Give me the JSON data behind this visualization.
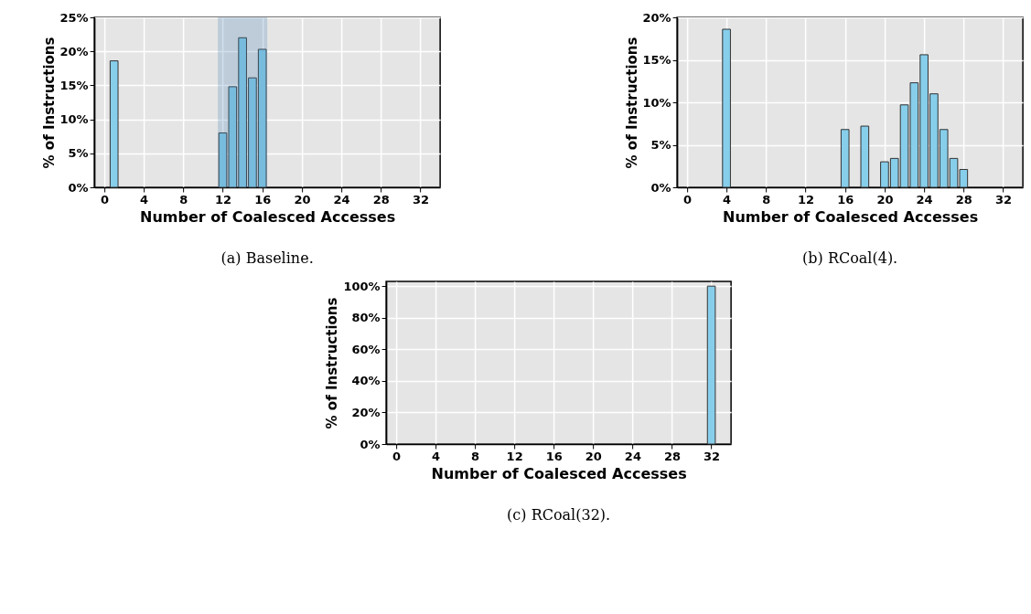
{
  "chart_data": [
    {
      "type": "bar",
      "title": "(a) Baseline.",
      "xlabel": "Number of Coalesced Accesses",
      "ylabel": "% of Instructions",
      "x": [
        1,
        12,
        13,
        14,
        15,
        16
      ],
      "series": [
        {
          "color": "#87ceeb",
          "values": [
            18.6,
            8.0,
            14.8,
            22.0,
            16.1,
            20.3
          ]
        }
      ],
      "xlim": [
        -1,
        34
      ],
      "xticks": [
        0,
        4,
        8,
        12,
        16,
        20,
        24,
        28,
        32
      ],
      "ylim": [
        0,
        25
      ],
      "yticks": [
        {
          "value": 0,
          "label": "0%"
        },
        {
          "value": 5,
          "label": "5%"
        },
        {
          "value": 10,
          "label": "10%"
        },
        {
          "value": 15,
          "label": "15%"
        },
        {
          "value": 20,
          "label": "20%"
        },
        {
          "value": 25,
          "label": "25%"
        }
      ],
      "bands": [
        {
          "axis": "x",
          "from": 11.5,
          "to": 16.5,
          "color": "#4682b4"
        }
      ],
      "grid": true
    },
    {
      "type": "bar",
      "title": "(b) RCoal(4).",
      "xlabel": "Number of Coalesced Accesses",
      "ylabel": "% of Instructions",
      "x": [
        4,
        16,
        18,
        20,
        21,
        22,
        23,
        24,
        25,
        26,
        27,
        28
      ],
      "series": [
        {
          "color": "#87ceeb",
          "values": [
            18.6,
            6.8,
            7.2,
            3.0,
            3.4,
            9.7,
            12.3,
            15.6,
            11.0,
            6.8,
            3.4,
            2.1
          ]
        }
      ],
      "xlim": [
        -1,
        34
      ],
      "xticks": [
        0,
        4,
        8,
        12,
        16,
        20,
        24,
        28,
        32
      ],
      "ylim": [
        0,
        20
      ],
      "yticks": [
        {
          "value": 0,
          "label": "0%"
        },
        {
          "value": 5,
          "label": "5%"
        },
        {
          "value": 10,
          "label": "10%"
        },
        {
          "value": 15,
          "label": "15%"
        },
        {
          "value": 20,
          "label": "20%"
        }
      ],
      "grid": true
    },
    {
      "type": "bar",
      "title": "(c) RCoal(32).",
      "xlabel": "Number of Coalesced Accesses",
      "ylabel": "% of Instructions",
      "x": [
        32
      ],
      "series": [
        {
          "color": "#87ceeb",
          "values": [
            100
          ]
        }
      ],
      "xlim": [
        -1,
        34
      ],
      "xticks": [
        0,
        4,
        8,
        12,
        16,
        20,
        24,
        28,
        32
      ],
      "ylim": [
        0,
        103
      ],
      "yticks": [
        {
          "value": 0,
          "label": "0%"
        },
        {
          "value": 20,
          "label": "20%"
        },
        {
          "value": 40,
          "label": "40%"
        },
        {
          "value": 60,
          "label": "60%"
        },
        {
          "value": 80,
          "label": "80%"
        },
        {
          "value": 100,
          "label": "100%"
        }
      ],
      "grid": true
    }
  ]
}
